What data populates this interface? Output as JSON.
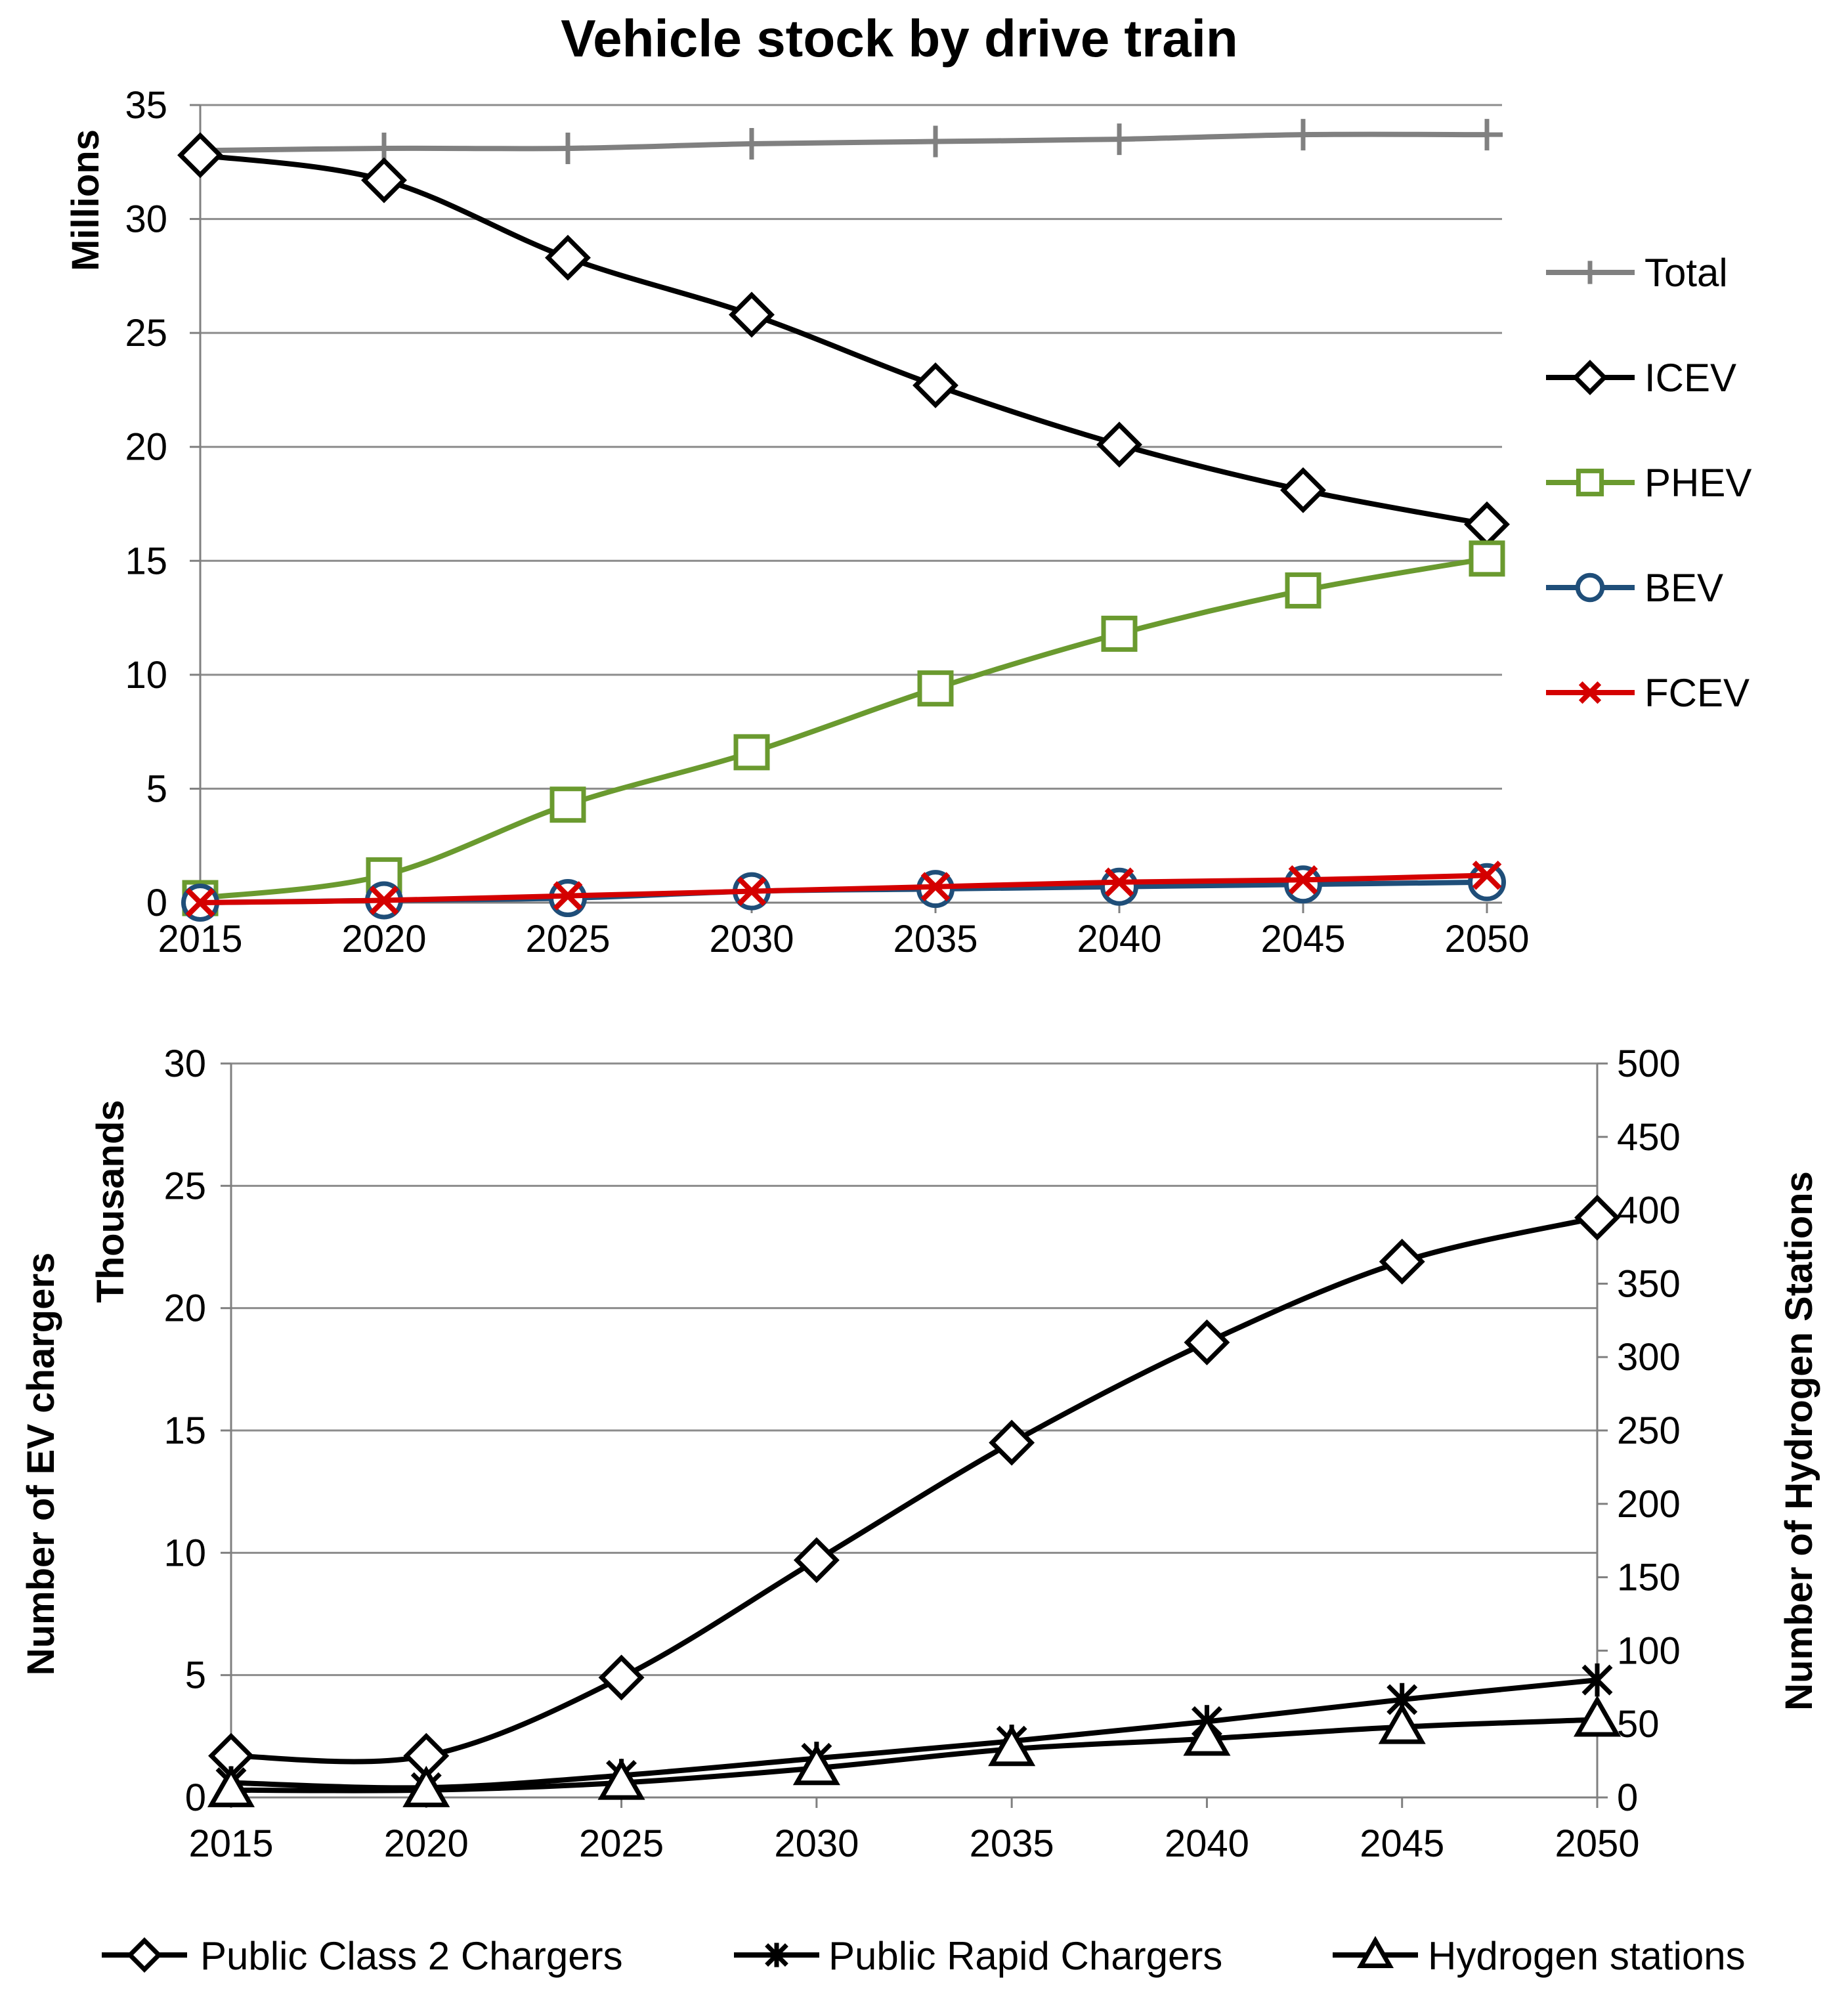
{
  "chart_data": [
    {
      "type": "line",
      "title": "Vehicle stock by drive train",
      "xlabel": "",
      "ylabel": "Millions",
      "x": [
        2015,
        2020,
        2025,
        2030,
        2035,
        2040,
        2045,
        2050
      ],
      "ylim": [
        0,
        35
      ],
      "yticks": [
        0,
        5,
        10,
        15,
        20,
        25,
        30,
        35
      ],
      "grid": true,
      "legend_position": "right",
      "series": [
        {
          "name": "Total",
          "marker": "plus",
          "color": "#808080",
          "values": [
            33.0,
            33.1,
            33.1,
            33.3,
            33.4,
            33.5,
            33.7,
            33.7
          ]
        },
        {
          "name": "ICEV",
          "marker": "diamond",
          "color": "#000000",
          "values": [
            32.8,
            31.7,
            28.3,
            25.8,
            22.7,
            20.1,
            18.1,
            16.6
          ]
        },
        {
          "name": "PHEV",
          "marker": "square",
          "color": "#6a9a2f",
          "values": [
            0.2,
            1.2,
            4.3,
            6.6,
            9.4,
            11.8,
            13.7,
            15.1
          ]
        },
        {
          "name": "BEV",
          "marker": "circle",
          "color": "#1f4e79",
          "values": [
            0.0,
            0.1,
            0.2,
            0.5,
            0.6,
            0.7,
            0.8,
            0.9
          ]
        },
        {
          "name": "FCEV",
          "marker": "x",
          "color": "#d40000",
          "values": [
            0.0,
            0.1,
            0.3,
            0.5,
            0.7,
            0.9,
            1.0,
            1.2
          ]
        }
      ]
    },
    {
      "type": "line",
      "title": "",
      "xlabel": "",
      "ylabel": "Number of EV chargers",
      "ylabel_units": "Thousands",
      "y2label": "Number of Hydrogen Stations",
      "x": [
        2015,
        2020,
        2025,
        2030,
        2035,
        2040,
        2045,
        2050
      ],
      "ylim": [
        0,
        30
      ],
      "yticks": [
        0,
        5,
        10,
        15,
        20,
        25,
        30
      ],
      "y2lim": [
        0,
        500
      ],
      "y2ticks": [
        0,
        50,
        100,
        150,
        200,
        250,
        300,
        350,
        400,
        450,
        500
      ],
      "grid": true,
      "legend_position": "bottom",
      "series": [
        {
          "name": "Public Class  2 Chargers",
          "marker": "diamond",
          "color": "#000000",
          "axis": "left",
          "values": [
            1.7,
            1.7,
            4.9,
            9.7,
            14.5,
            18.6,
            21.9,
            23.7
          ]
        },
        {
          "name": "Public Rapid Chargers",
          "marker": "asterisk",
          "color": "#000000",
          "axis": "left",
          "values": [
            0.6,
            0.4,
            0.9,
            1.6,
            2.3,
            3.1,
            4.0,
            4.8
          ]
        },
        {
          "name": "Hydrogen stations",
          "marker": "triangle",
          "color": "#000000",
          "axis": "right",
          "values": [
            5,
            5,
            10,
            20,
            33,
            40,
            48,
            53
          ]
        }
      ]
    }
  ]
}
